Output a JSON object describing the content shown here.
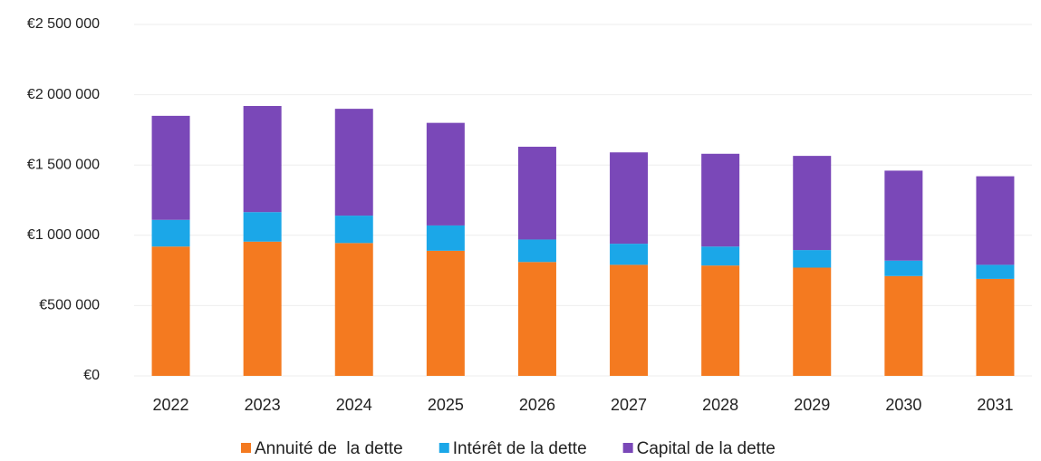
{
  "chart_data": {
    "type": "stacked_bar",
    "categories": [
      "2022",
      "2023",
      "2024",
      "2025",
      "2026",
      "2027",
      "2028",
      "2029",
      "2030",
      "2031"
    ],
    "series": [
      {
        "name": "Annuité de  la dette",
        "color": "#f47a20",
        "values": [
          920000,
          955000,
          945000,
          890000,
          810000,
          790000,
          785000,
          770000,
          710000,
          690000
        ]
      },
      {
        "name": "Intérêt de la dette",
        "color": "#1ba7e8",
        "values": [
          190000,
          210000,
          195000,
          180000,
          160000,
          150000,
          135000,
          125000,
          110000,
          100000
        ]
      },
      {
        "name": "Capital de la dette",
        "color": "#7a48b8",
        "values": [
          740000,
          755000,
          760000,
          730000,
          660000,
          650000,
          660000,
          670000,
          640000,
          630000
        ]
      }
    ],
    "ylim": [
      0,
      2500000
    ],
    "yticks": [
      {
        "value": 0,
        "label": "€0"
      },
      {
        "value": 500000,
        "label": "€500 000"
      },
      {
        "value": 1000000,
        "label": "€1 000 000"
      },
      {
        "value": 1500000,
        "label": "€1 500 000"
      },
      {
        "value": 2000000,
        "label": "€2 000 000"
      },
      {
        "value": 2500000,
        "label": "€2 500 000"
      }
    ],
    "grid": true,
    "legend": "bottom"
  }
}
